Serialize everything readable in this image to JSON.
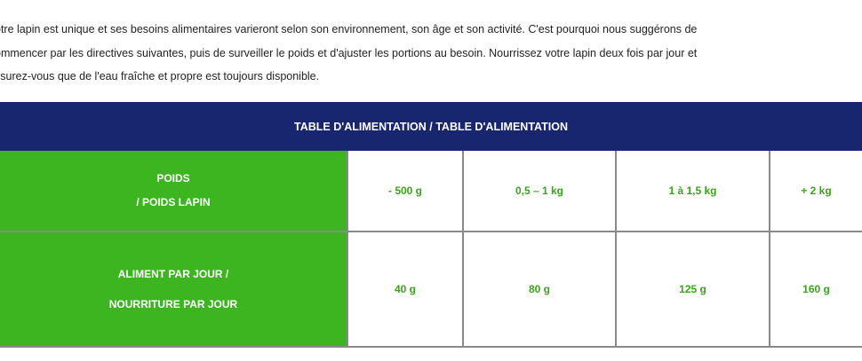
{
  "intro": {
    "lines": [
      "otre lapin est unique et ses besoins alimentaires varieront selon son environnement, son âge et son activité. C'est pourquoi nous suggérons de",
      "ommencer par les directives suivantes, puis de surveiller le poids et d'ajuster les portions au besoin. Nourrissez votre lapin deux fois par jour et",
      "ssurez-vous que de l'eau fraîche et propre est toujours disponible."
    ]
  },
  "table": {
    "title": "TABLE D'ALIMENTATION / TABLE D'ALIMENTATION",
    "colors": {
      "header": "#17266e",
      "label": "#3cb521",
      "value_text": "#3aa31c"
    },
    "rows": [
      {
        "label_lines": [
          "POIDS",
          "/ POIDS LAPIN"
        ],
        "values": [
          "- 500 g",
          "0,5 – 1 kg",
          "1 à 1,5 kg",
          "+ 2 kg"
        ]
      },
      {
        "label_lines": [
          "ALIMENT PAR JOUR /",
          "NOURRITURE PAR JOUR"
        ],
        "values": [
          "40 g",
          "80 g",
          "125 g",
          "160 g"
        ]
      }
    ]
  }
}
